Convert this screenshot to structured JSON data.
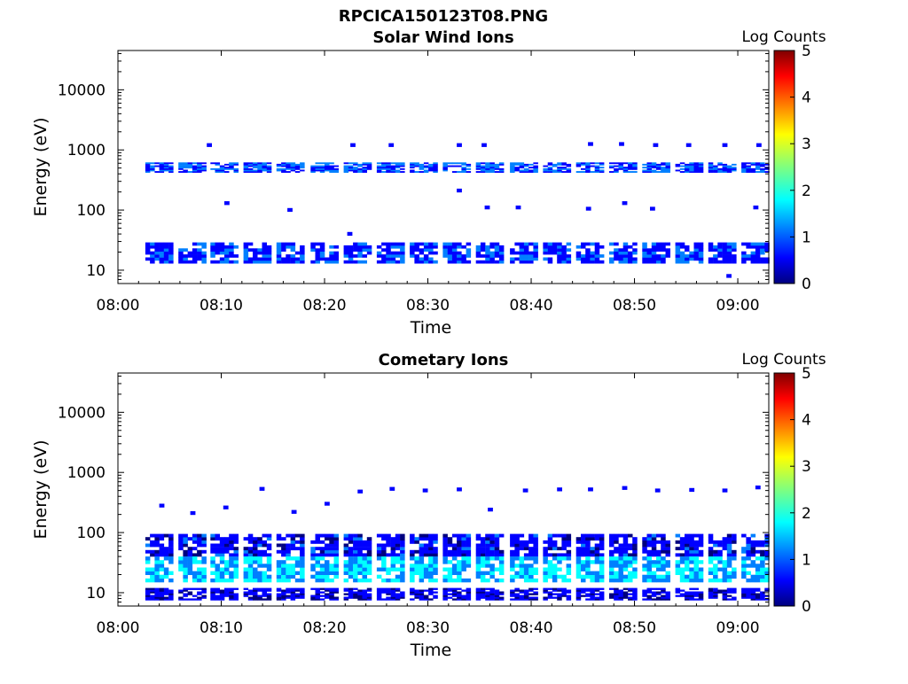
{
  "figure_title": "RPCICA150123T08.PNG",
  "colormap": [
    "#00007f",
    "#0000ff",
    "#007fff",
    "#00ffff",
    "#7fff7f",
    "#ffff00",
    "#ff7f00",
    "#ff0000",
    "#7f0000"
  ],
  "chart_data": [
    {
      "type": "heatmap",
      "title": "Solar Wind Ions",
      "xlabel": "Time",
      "ylabel": "Energy (eV)",
      "x_ticks": [
        "08:00",
        "08:10",
        "08:20",
        "08:30",
        "08:40",
        "08:50",
        "09:00"
      ],
      "xlim_minutes": [
        0,
        63
      ],
      "y_scale": "log",
      "ylim": [
        6,
        45000
      ],
      "y_ticks": [
        10,
        100,
        1000,
        10000
      ],
      "colorbar": {
        "label": "Log Counts",
        "range": [
          0,
          5
        ],
        "ticks": [
          "0",
          "1",
          "2",
          "3",
          "4",
          "5"
        ]
      },
      "sweep_minutes": [
        4,
        7.2,
        10.3,
        13.5,
        16.7,
        20,
        23.2,
        26.4,
        29.6,
        32.8,
        36,
        39.3,
        42.5,
        45.7,
        48.9,
        52.1,
        55.3,
        58.5,
        61.7
      ],
      "bands": [
        {
          "emin": 13,
          "emax": 29,
          "level": 0.7
        },
        {
          "emin": 420,
          "emax": 620,
          "level": 0.8
        }
      ],
      "sparse_points": [
        {
          "t": 8.6,
          "e": 1200
        },
        {
          "t": 22.5,
          "e": 1200
        },
        {
          "t": 26.2,
          "e": 1200
        },
        {
          "t": 32.8,
          "e": 1200
        },
        {
          "t": 35.2,
          "e": 1200
        },
        {
          "t": 45.5,
          "e": 1250
        },
        {
          "t": 48.5,
          "e": 1250
        },
        {
          "t": 51.8,
          "e": 1200
        },
        {
          "t": 55.0,
          "e": 1200
        },
        {
          "t": 58.5,
          "e": 1200
        },
        {
          "t": 61.8,
          "e": 1200
        },
        {
          "t": 10.3,
          "e": 130
        },
        {
          "t": 16.4,
          "e": 100
        },
        {
          "t": 35.5,
          "e": 110
        },
        {
          "t": 38.5,
          "e": 110
        },
        {
          "t": 45.3,
          "e": 105
        },
        {
          "t": 48.8,
          "e": 130
        },
        {
          "t": 51.5,
          "e": 105
        },
        {
          "t": 61.5,
          "e": 110
        },
        {
          "t": 32.8,
          "e": 210
        },
        {
          "t": 22.2,
          "e": 40
        },
        {
          "t": 58.9,
          "e": 8
        }
      ]
    },
    {
      "type": "heatmap",
      "title": "Cometary Ions",
      "xlabel": "Time",
      "ylabel": "Energy (eV)",
      "x_ticks": [
        "08:00",
        "08:10",
        "08:20",
        "08:30",
        "08:40",
        "08:50",
        "09:00"
      ],
      "xlim_minutes": [
        0,
        63
      ],
      "y_scale": "log",
      "ylim": [
        6,
        45000
      ],
      "y_ticks": [
        10,
        100,
        1000,
        10000
      ],
      "colorbar": {
        "label": "Log Counts",
        "range": [
          0,
          5
        ],
        "ticks": [
          "0",
          "1",
          "2",
          "3",
          "4",
          "5"
        ]
      },
      "sweep_minutes": [
        4,
        7.2,
        10.3,
        13.5,
        16.7,
        20,
        23.2,
        26.4,
        29.6,
        32.8,
        36,
        39.3,
        42.5,
        45.7,
        48.9,
        52.1,
        55.3,
        58.5,
        61.7
      ],
      "bands": [
        {
          "emin": 40,
          "emax": 95,
          "level": 0.5
        },
        {
          "emin": 15,
          "emax": 40,
          "level": 1.5
        },
        {
          "emin": 7.5,
          "emax": 12,
          "level": 0.4
        }
      ],
      "sparse_points": [
        {
          "t": 4.0,
          "e": 280
        },
        {
          "t": 7.0,
          "e": 210
        },
        {
          "t": 10.2,
          "e": 260
        },
        {
          "t": 13.7,
          "e": 530
        },
        {
          "t": 16.8,
          "e": 220
        },
        {
          "t": 20.0,
          "e": 300
        },
        {
          "t": 23.2,
          "e": 480
        },
        {
          "t": 26.3,
          "e": 530
        },
        {
          "t": 29.5,
          "e": 500
        },
        {
          "t": 32.8,
          "e": 520
        },
        {
          "t": 35.8,
          "e": 240
        },
        {
          "t": 39.2,
          "e": 500
        },
        {
          "t": 42.5,
          "e": 520
        },
        {
          "t": 45.5,
          "e": 520
        },
        {
          "t": 48.8,
          "e": 550
        },
        {
          "t": 52.0,
          "e": 500
        },
        {
          "t": 55.3,
          "e": 510
        },
        {
          "t": 58.5,
          "e": 500
        },
        {
          "t": 61.7,
          "e": 560
        }
      ]
    }
  ]
}
